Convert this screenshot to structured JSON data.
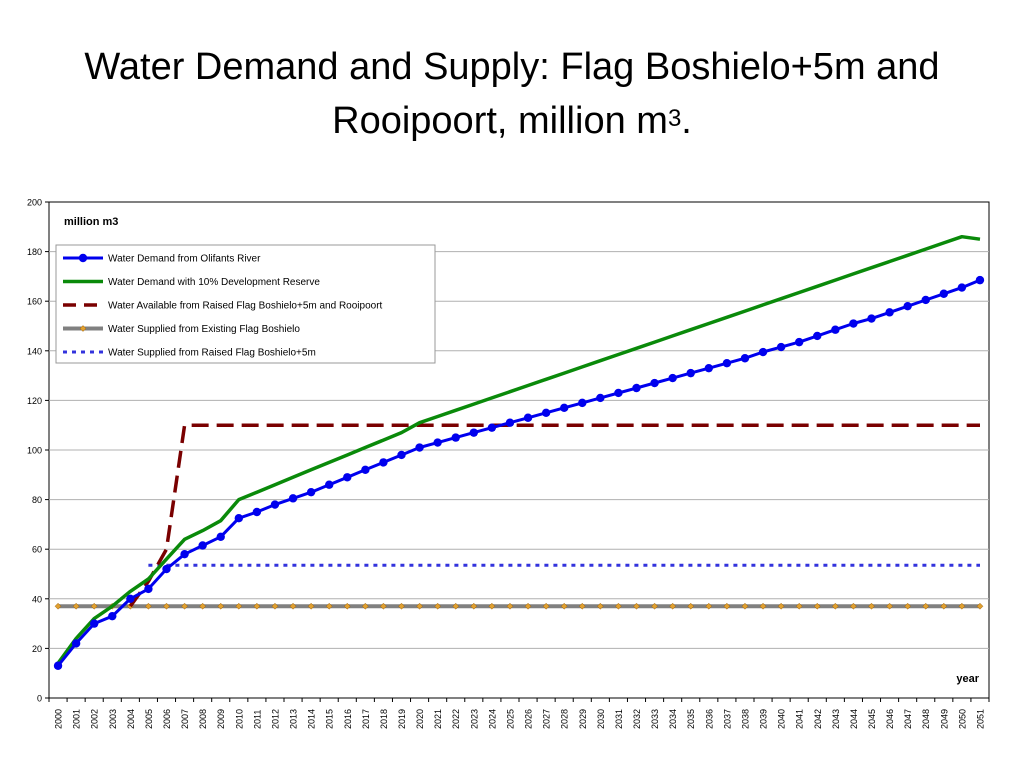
{
  "slide": {
    "title_line1": "Water Demand and Supply: Flag Boshielo+5m and",
    "title_line2_main": "Rooipoort, million m",
    "title_line2_sup": "3",
    "title_line2_end": "."
  },
  "chart_data": {
    "type": "line",
    "ylabel": "million m3",
    "xlabel": "year",
    "ylim": [
      0,
      200
    ],
    "yticks": [
      0,
      20,
      40,
      60,
      80,
      100,
      120,
      140,
      160,
      180,
      200
    ],
    "grid": "horizontal",
    "legend_position": "top-left",
    "x": [
      2000,
      2001,
      2002,
      2003,
      2004,
      2005,
      2006,
      2007,
      2008,
      2009,
      2010,
      2011,
      2012,
      2013,
      2014,
      2015,
      2016,
      2017,
      2018,
      2019,
      2020,
      2021,
      2022,
      2023,
      2024,
      2025,
      2026,
      2027,
      2028,
      2029,
      2030,
      2031,
      2032,
      2033,
      2034,
      2035,
      2036,
      2037,
      2038,
      2039,
      2040,
      2041,
      2042,
      2043,
      2044,
      2045,
      2046,
      2047,
      2048,
      2049,
      2050,
      2051
    ],
    "series": [
      {
        "name": "Water Demand from Olifants River",
        "color": "#0000ee",
        "style": "solid-markers",
        "values": [
          13,
          22,
          30,
          33,
          40,
          44,
          52,
          58,
          61.5,
          65,
          72.5,
          75,
          78,
          80.5,
          83,
          86,
          89,
          92,
          95,
          98,
          101,
          103,
          105,
          107,
          109,
          111,
          113,
          115,
          117,
          119,
          121,
          123,
          125,
          127,
          129,
          131,
          133,
          135,
          137,
          139.5,
          141.5,
          143.5,
          146,
          148.5,
          151,
          153,
          155.5,
          158,
          160.5,
          163,
          165.5,
          168.5
        ]
      },
      {
        "name": "Water Demand with 10% Development Reserve",
        "color": "#0a8a0a",
        "style": "solid",
        "values": [
          14,
          24,
          32,
          37,
          43,
          48,
          56,
          64,
          67.5,
          71.5,
          80,
          83,
          86,
          89,
          92,
          95,
          98,
          101,
          104,
          107,
          111,
          113.5,
          116,
          118.5,
          121,
          123.5,
          126,
          128.5,
          131,
          133.5,
          136,
          138.5,
          141,
          143.5,
          146,
          148.5,
          151,
          153.5,
          156,
          158.5,
          161,
          163.5,
          166,
          168.5,
          171,
          173.5,
          176,
          178.5,
          181,
          183.5,
          186,
          185
        ]
      },
      {
        "name": "Water Available from Raised Flag Boshielo+5m and Rooipoort",
        "color": "#7a0000",
        "style": "dashed",
        "values": [
          null,
          null,
          null,
          null,
          37,
          47,
          60,
          110,
          110,
          110,
          110,
          110,
          110,
          110,
          110,
          110,
          110,
          110,
          110,
          110,
          110,
          110,
          110,
          110,
          110,
          110,
          110,
          110,
          110,
          110,
          110,
          110,
          110,
          110,
          110,
          110,
          110,
          110,
          110,
          110,
          110,
          110,
          110,
          110,
          110,
          110,
          110,
          110,
          110,
          110,
          110,
          110
        ]
      },
      {
        "name": "Water Supplied from Existing Flag Boshielo",
        "color": "#808080",
        "style": "solid-diamonds",
        "values": [
          37,
          37,
          37,
          37,
          37,
          37,
          37,
          37,
          37,
          37,
          37,
          37,
          37,
          37,
          37,
          37,
          37,
          37,
          37,
          37,
          37,
          37,
          37,
          37,
          37,
          37,
          37,
          37,
          37,
          37,
          37,
          37,
          37,
          37,
          37,
          37,
          37,
          37,
          37,
          37,
          37,
          37,
          37,
          37,
          37,
          37,
          37,
          37,
          37,
          37,
          37,
          37
        ]
      },
      {
        "name": "Water Supplied from Raised Flag Boshielo+5m",
        "color": "#3333dd",
        "style": "dotted",
        "values": [
          null,
          null,
          null,
          null,
          null,
          53.5,
          53.5,
          53.5,
          53.5,
          53.5,
          53.5,
          53.5,
          53.5,
          53.5,
          53.5,
          53.5,
          53.5,
          53.5,
          53.5,
          53.5,
          53.5,
          53.5,
          53.5,
          53.5,
          53.5,
          53.5,
          53.5,
          53.5,
          53.5,
          53.5,
          53.5,
          53.5,
          53.5,
          53.5,
          53.5,
          53.5,
          53.5,
          53.5,
          53.5,
          53.5,
          53.5,
          53.5,
          53.5,
          53.5,
          53.5,
          53.5,
          53.5,
          53.5,
          53.5,
          53.5,
          53.5,
          53.5
        ]
      }
    ]
  }
}
